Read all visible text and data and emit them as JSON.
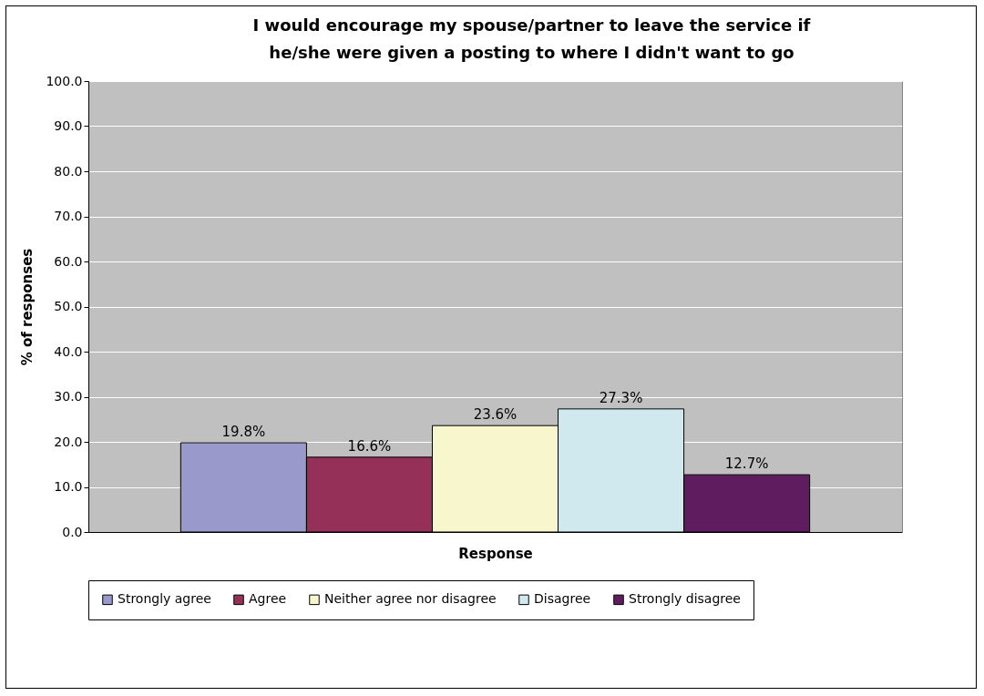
{
  "chart_data": {
    "type": "bar",
    "title": "I would encourage my spouse/partner to leave the service if he/she were given a posting to where I didn't want to go",
    "xlabel": "Response",
    "ylabel": "% of responses",
    "categories": [
      null
    ],
    "series": [
      {
        "name": "Strongly agree",
        "color": "#9999cc",
        "values": [
          19.8
        ],
        "value_labels": [
          "19.8%"
        ]
      },
      {
        "name": "Agree",
        "color": "#953059",
        "values": [
          16.6
        ],
        "value_labels": [
          "16.6%"
        ]
      },
      {
        "name": "Neither agree nor disagree",
        "color": "#f8f6cc",
        "values": [
          23.6
        ],
        "value_labels": [
          "23.6%"
        ]
      },
      {
        "name": "Disagree",
        "color": "#cfe9ef",
        "values": [
          27.3
        ],
        "value_labels": [
          "27.3%"
        ]
      },
      {
        "name": "Strongly disagree",
        "color": "#5f1c5e",
        "values": [
          12.7
        ],
        "value_labels": [
          "12.7%"
        ]
      }
    ],
    "ylim": [
      0,
      100
    ],
    "yticks": [
      {
        "value": 0,
        "label": "0.0"
      },
      {
        "value": 10,
        "label": "10.0"
      },
      {
        "value": 20,
        "label": "20.0"
      },
      {
        "value": 30,
        "label": "30.0"
      },
      {
        "value": 40,
        "label": "40.0"
      },
      {
        "value": 50,
        "label": "50.0"
      },
      {
        "value": 60,
        "label": "60.0"
      },
      {
        "value": 70,
        "label": "70.0"
      },
      {
        "value": 80,
        "label": "80.0"
      },
      {
        "value": 90,
        "label": "90.0"
      },
      {
        "value": 100,
        "label": "100.0"
      }
    ],
    "grid": "y",
    "legend": "bottom"
  }
}
